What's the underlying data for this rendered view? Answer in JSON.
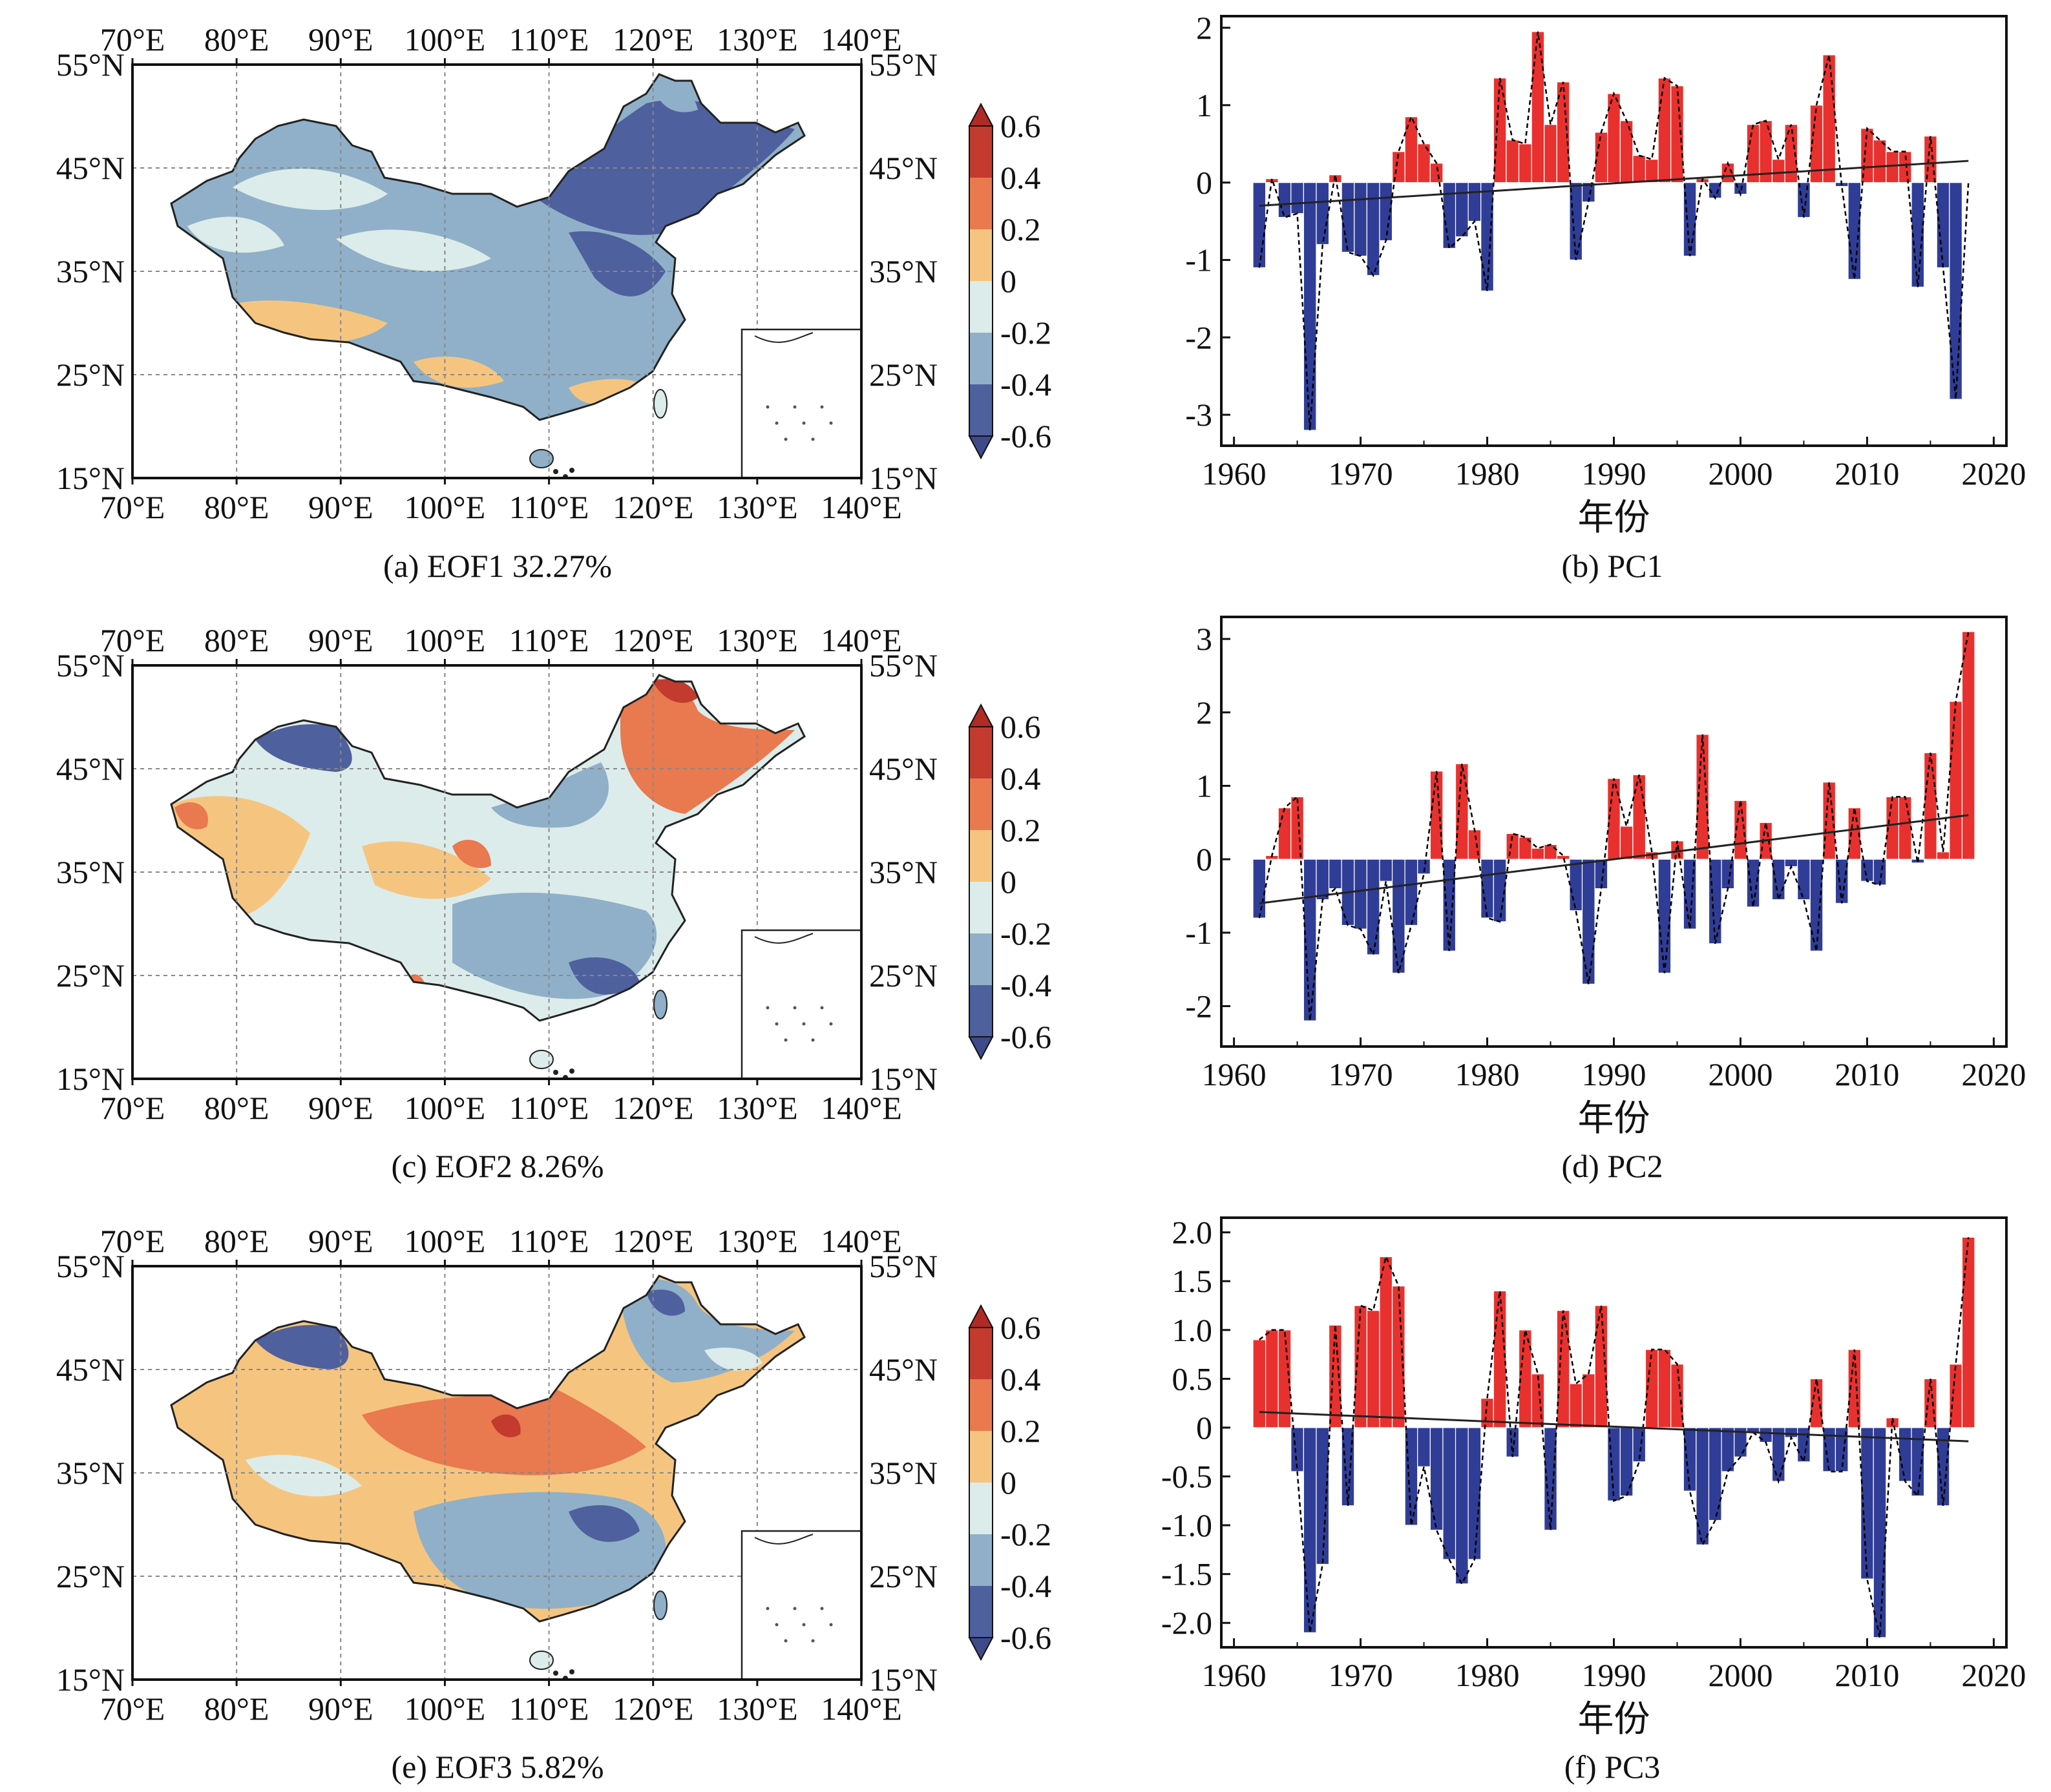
{
  "panels": [
    {
      "map_caption": "(a) EOF1  32.27%",
      "pc_caption": "(b) PC1"
    },
    {
      "map_caption": "(c) EOF2  8.26%",
      "pc_caption": "(d) PC2"
    },
    {
      "map_caption": "(e) EOF3  5.82%",
      "pc_caption": "(f) PC3"
    }
  ],
  "map": {
    "lon_labels": [
      "70°E",
      "80°E",
      "90°E",
      "100°E",
      "110°E",
      "120°E",
      "130°E",
      "140°E"
    ],
    "lat_labels": [
      "55°N",
      "45°N",
      "35°N",
      "25°N",
      "15°N"
    ],
    "colorbar": {
      "labels": [
        "0.6",
        "0.4",
        "0.2",
        "0",
        "-0.2",
        "-0.4",
        "-0.6"
      ],
      "colors": [
        "#c23b2e",
        "#e9794f",
        "#f5c57f",
        "#dcecea",
        "#8fb0c8",
        "#4f609e"
      ]
    },
    "fill_colors": {
      "ocean": "#ffffff",
      "border": "#222222"
    }
  },
  "colors": {
    "positive_bar": "#e8312e",
    "negative_bar": "#303d96",
    "trend_line": "#222222",
    "dashed_line": "#000000"
  },
  "chart_data": [
    {
      "type": "bar",
      "xlabel": "年份",
      "x_ticks": [
        1960,
        1970,
        1980,
        1990,
        2000,
        2010,
        2020
      ],
      "xlim": [
        1959,
        2021
      ],
      "ylim": [
        -3.4,
        2.15
      ],
      "y_ticks": [
        "2",
        "1",
        "0",
        "-1",
        "-2",
        "-3"
      ],
      "y_tick_values": [
        2,
        1,
        0,
        -1,
        -2,
        -3
      ],
      "start_year": 1962,
      "values": [
        -1.1,
        0.05,
        -0.45,
        -0.4,
        -3.2,
        -0.8,
        0.1,
        -0.9,
        -0.95,
        -1.2,
        -0.75,
        0.4,
        0.85,
        0.5,
        0.25,
        -0.85,
        -0.7,
        -0.5,
        -1.4,
        1.35,
        0.55,
        0.5,
        1.95,
        0.75,
        1.3,
        -1.0,
        -0.25,
        0.65,
        1.15,
        0.8,
        0.35,
        0.3,
        1.35,
        1.25,
        -0.95,
        0.05,
        -0.2,
        0.25,
        -0.15,
        0.75,
        0.8,
        0.3,
        0.75,
        -0.45,
        1.0,
        1.65,
        -0.05,
        -1.25,
        0.7,
        0.55,
        0.4,
        0.4,
        -1.35,
        0.6,
        -1.1,
        -2.8,
        0.0
      ],
      "trend": [
        [
          1962,
          -0.3
        ],
        [
          2018,
          0.28
        ]
      ],
      "grid": false
    },
    {
      "type": "bar",
      "xlabel": "年份",
      "x_ticks": [
        1960,
        1970,
        1980,
        1990,
        2000,
        2010,
        2020
      ],
      "xlim": [
        1959,
        2021
      ],
      "ylim": [
        -2.55,
        3.3
      ],
      "y_ticks": [
        "3",
        "2",
        "1",
        "0",
        "-1",
        "-2"
      ],
      "y_tick_values": [
        3,
        2,
        1,
        0,
        -1,
        -2
      ],
      "start_year": 1962,
      "values": [
        -0.8,
        0.05,
        0.7,
        0.85,
        -2.2,
        -0.55,
        -0.4,
        -0.9,
        -0.95,
        -1.3,
        -0.3,
        -1.55,
        -0.9,
        -0.2,
        1.2,
        -1.25,
        1.3,
        0.4,
        -0.8,
        -0.85,
        0.35,
        0.3,
        0.15,
        0.2,
        0.05,
        -0.7,
        -1.7,
        -0.4,
        1.1,
        0.45,
        1.15,
        0.1,
        -1.55,
        0.25,
        -0.95,
        1.7,
        -1.15,
        -0.4,
        0.8,
        -0.65,
        0.5,
        -0.55,
        -0.1,
        -0.55,
        -1.25,
        1.05,
        -0.6,
        0.7,
        -0.3,
        -0.35,
        0.85,
        0.85,
        -0.05,
        1.45,
        0.1,
        2.15,
        3.1
      ],
      "trend": [
        [
          1962,
          -0.6
        ],
        [
          2018,
          0.6
        ]
      ],
      "grid": false
    },
    {
      "type": "bar",
      "xlabel": "年份",
      "x_ticks": [
        1960,
        1970,
        1980,
        1990,
        2000,
        2010,
        2020
      ],
      "xlim": [
        1959,
        2021
      ],
      "ylim": [
        -2.25,
        2.15
      ],
      "y_ticks": [
        "2.0",
        "1.5",
        "1.0",
        "0.5",
        "0",
        "-0.5",
        "-1.0",
        "-1.5",
        "-2.0"
      ],
      "y_tick_values": [
        2.0,
        1.5,
        1.0,
        0.5,
        0,
        -0.5,
        -1.0,
        -1.5,
        -2.0
      ],
      "start_year": 1962,
      "values": [
        0.9,
        1.0,
        1.0,
        -0.45,
        -2.1,
        -1.4,
        1.05,
        -0.8,
        1.25,
        1.2,
        1.75,
        1.45,
        -1.0,
        -0.4,
        -1.05,
        -1.35,
        -1.6,
        -1.35,
        0.3,
        1.4,
        -0.3,
        1.0,
        0.55,
        -1.05,
        1.2,
        0.45,
        0.55,
        1.25,
        -0.75,
        -0.7,
        -0.35,
        0.8,
        0.8,
        0.65,
        -0.65,
        -1.2,
        -0.95,
        -0.45,
        -0.3,
        -0.05,
        -0.15,
        -0.55,
        -0.1,
        -0.35,
        0.5,
        -0.45,
        -0.45,
        0.8,
        -1.55,
        -2.15,
        0.1,
        -0.55,
        -0.7,
        0.5,
        -0.8,
        0.65,
        1.95
      ],
      "trend": [
        [
          1962,
          0.16
        ],
        [
          2018,
          -0.14
        ]
      ],
      "grid": false
    }
  ]
}
